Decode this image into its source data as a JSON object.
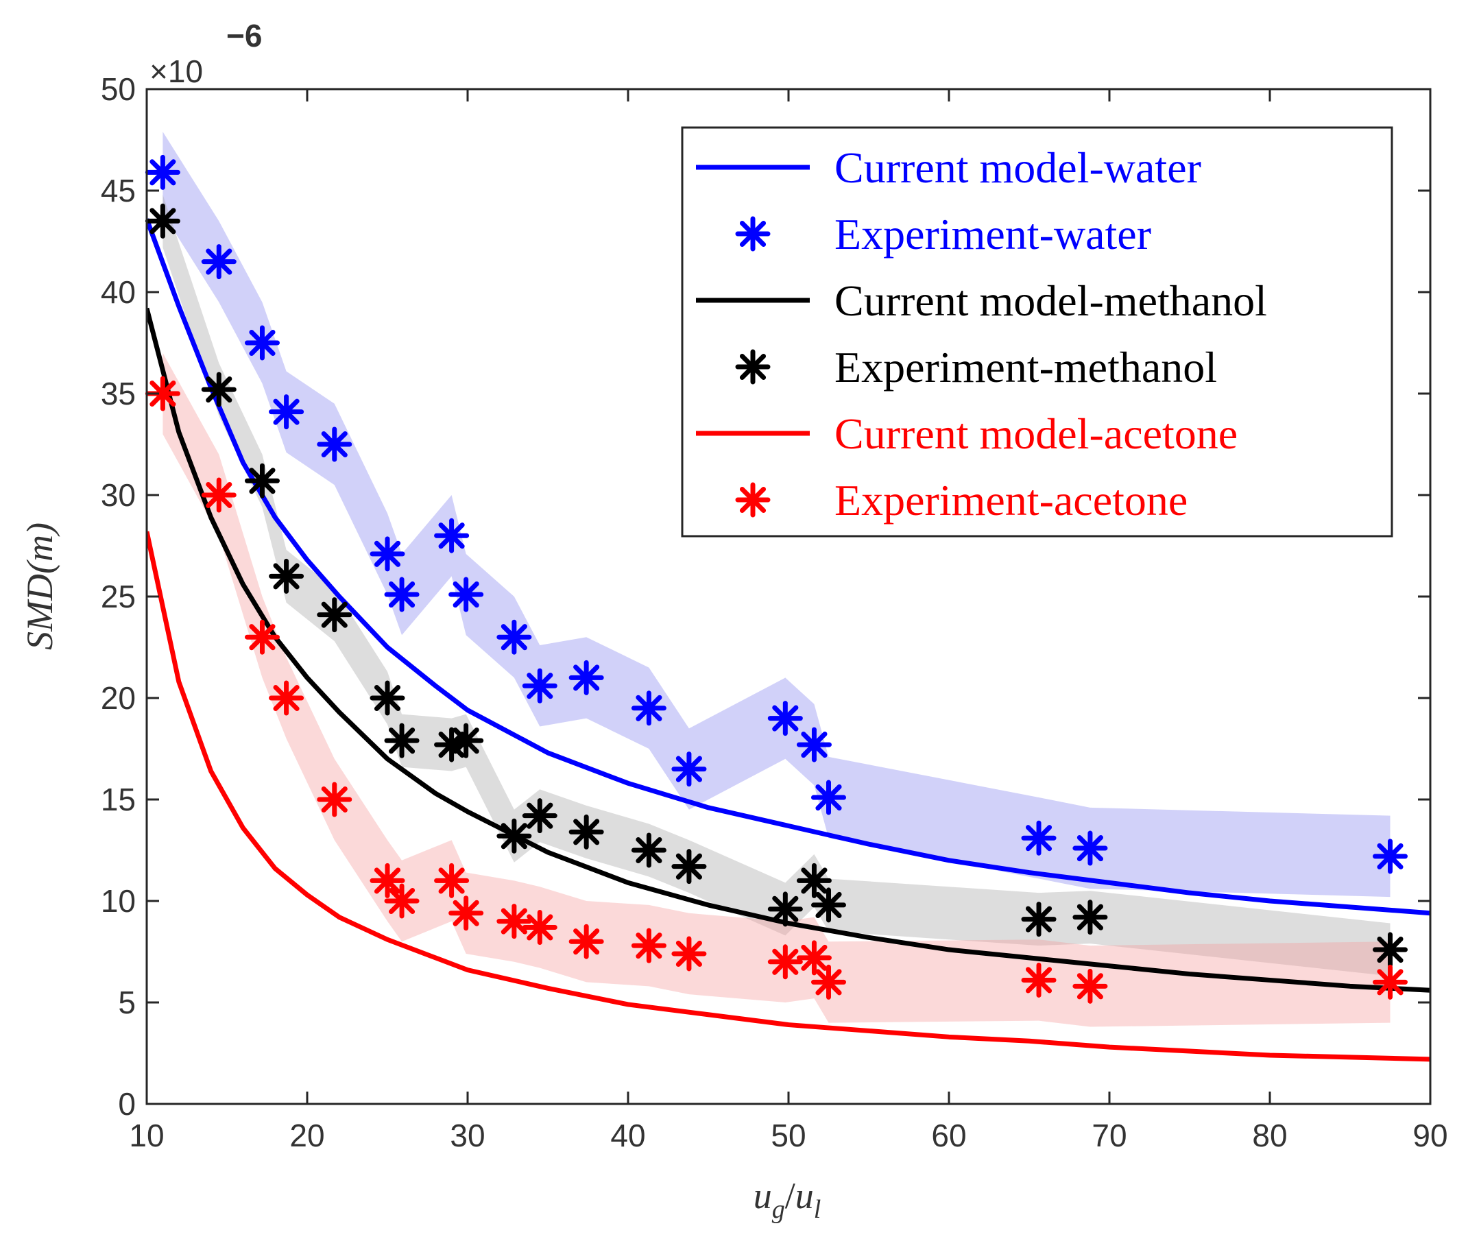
{
  "chart_data": {
    "type": "line",
    "xlabel_base": "u",
    "xlabel_num_sub": "g",
    "xlabel_sep": "/",
    "xlabel_den_sub": "l",
    "ylabel": "SMD(m)",
    "exponent_prefix": "×10",
    "exponent_power": "−6",
    "xlim": [
      10,
      90
    ],
    "ylim": [
      0,
      50
    ],
    "xticks": [
      "10",
      "20",
      "30",
      "40",
      "50",
      "60",
      "70",
      "80",
      "90"
    ],
    "yticks": [
      "0",
      "5",
      "10",
      "15",
      "20",
      "25",
      "30",
      "35",
      "40",
      "45",
      "50"
    ],
    "legend_position": "top-right",
    "series": [
      {
        "name": "Current model-water",
        "kind": "model",
        "color": "#0000ff",
        "x": [
          10,
          12,
          14,
          16,
          18,
          20,
          22,
          25,
          28,
          30,
          35,
          40,
          45,
          50,
          55,
          60,
          65,
          70,
          75,
          80,
          85,
          90
        ],
        "y": [
          43.6,
          39.3,
          35.3,
          31.6,
          28.9,
          26.8,
          25.0,
          22.5,
          20.6,
          19.4,
          17.3,
          15.8,
          14.6,
          13.7,
          12.8,
          12.0,
          11.4,
          10.9,
          10.4,
          10.0,
          9.7,
          9.4
        ]
      },
      {
        "name": "Experiment-water",
        "kind": "experiment",
        "color": "#0000ff",
        "band_color": "#8c8cf0",
        "x": [
          11,
          14.5,
          17.2,
          18.7,
          21.7,
          25.0,
          25.9,
          29.0,
          29.9,
          32.9,
          34.5,
          37.4,
          41.3,
          43.8,
          49.8,
          51.6,
          52.5,
          65.6,
          68.8,
          87.5
        ],
        "y": [
          45.9,
          41.5,
          37.5,
          34.1,
          32.5,
          27.1,
          25.1,
          28.0,
          25.1,
          23.0,
          20.6,
          21.0,
          19.5,
          16.5,
          19.0,
          17.7,
          15.1,
          13.1,
          12.6,
          12.2
        ],
        "band_halfwidth": 2
      },
      {
        "name": "Current model-methanol",
        "kind": "model",
        "color": "#000000",
        "x": [
          10,
          12,
          14,
          16,
          18,
          20,
          22,
          25,
          28,
          30,
          35,
          40,
          45,
          50,
          55,
          60,
          65,
          70,
          75,
          80,
          85,
          90
        ],
        "y": [
          39.2,
          33.1,
          28.9,
          25.6,
          23.0,
          21.0,
          19.3,
          17.0,
          15.3,
          14.4,
          12.4,
          10.9,
          9.8,
          8.9,
          8.2,
          7.6,
          7.2,
          6.8,
          6.4,
          6.1,
          5.8,
          5.6
        ]
      },
      {
        "name": "Experiment-methanol",
        "kind": "experiment",
        "color": "#000000",
        "band_color": "#aaaaaa",
        "x": [
          11,
          14.5,
          17.2,
          18.7,
          21.7,
          25.0,
          25.9,
          29.0,
          29.9,
          32.9,
          34.5,
          37.4,
          41.3,
          43.8,
          49.8,
          51.6,
          52.5,
          65.6,
          68.8,
          87.5
        ],
        "y": [
          43.5,
          35.2,
          30.7,
          26.0,
          24.1,
          20.0,
          17.9,
          17.7,
          17.9,
          13.2,
          14.2,
          13.4,
          12.5,
          11.7,
          9.6,
          11.0,
          9.8,
          9.1,
          9.2,
          7.6
        ],
        "band_halfwidth": 1.3
      },
      {
        "name": "Current model-acetone",
        "kind": "model",
        "color": "#ff0000",
        "x": [
          10,
          12,
          14,
          16,
          18,
          20,
          22,
          25,
          28,
          30,
          35,
          40,
          45,
          50,
          55,
          60,
          65,
          70,
          75,
          80,
          85,
          90
        ],
        "y": [
          28.2,
          20.8,
          16.4,
          13.6,
          11.6,
          10.3,
          9.2,
          8.1,
          7.2,
          6.6,
          5.7,
          4.9,
          4.4,
          3.9,
          3.6,
          3.3,
          3.1,
          2.8,
          2.6,
          2.4,
          2.3,
          2.2
        ]
      },
      {
        "name": "Experiment-acetone",
        "kind": "experiment",
        "color": "#ff0000",
        "band_color": "#f5a0a0",
        "x": [
          11,
          14.5,
          17.2,
          18.7,
          21.7,
          25.0,
          25.9,
          29.0,
          29.9,
          32.9,
          34.5,
          37.4,
          41.3,
          43.8,
          49.8,
          51.6,
          52.5,
          65.6,
          68.8,
          87.5
        ],
        "y": [
          35.0,
          30.0,
          23.0,
          20.0,
          15.0,
          11.0,
          10.0,
          11.0,
          9.4,
          9.0,
          8.7,
          8.0,
          7.8,
          7.4,
          7.0,
          7.2,
          6.0,
          6.1,
          5.8,
          6.0
        ],
        "band_halfwidth": 2
      }
    ]
  }
}
